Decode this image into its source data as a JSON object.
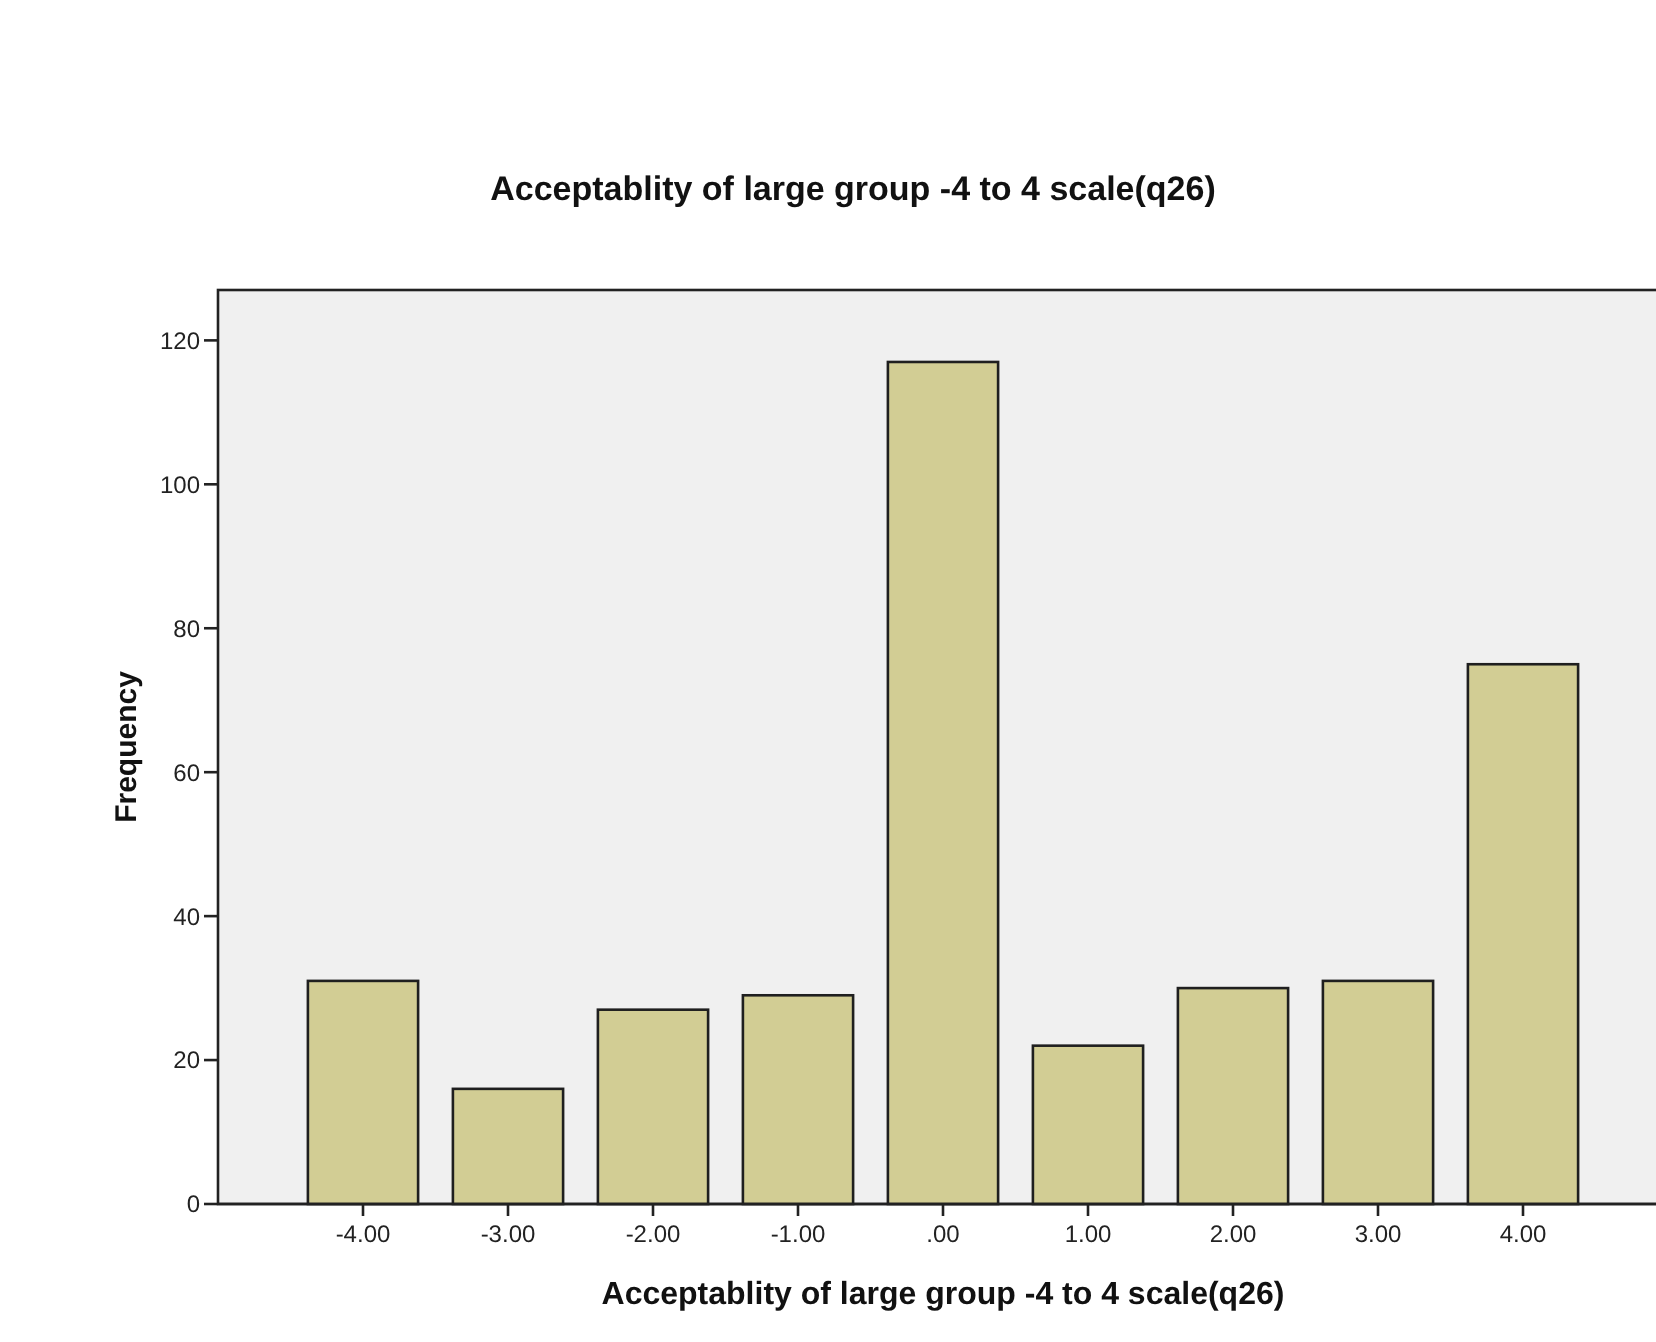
{
  "chart_data": {
    "type": "bar",
    "title": "Acceptablity of large group -4 to 4 scale(q26)",
    "xlabel": "Acceptablity of large group -4 to 4 scale(q26)",
    "ylabel": "Frequency",
    "categories": [
      "-4.00",
      "-3.00",
      "-2.00",
      "-1.00",
      ".00",
      "1.00",
      "2.00",
      "3.00",
      "4.00"
    ],
    "values": [
      31,
      16,
      27,
      29,
      117,
      22,
      30,
      31,
      75
    ],
    "color": "#d2cd94",
    "ylim": [
      0,
      127
    ],
    "yticks": [
      0,
      20,
      40,
      60,
      80,
      100,
      120
    ],
    "grid": false
  }
}
